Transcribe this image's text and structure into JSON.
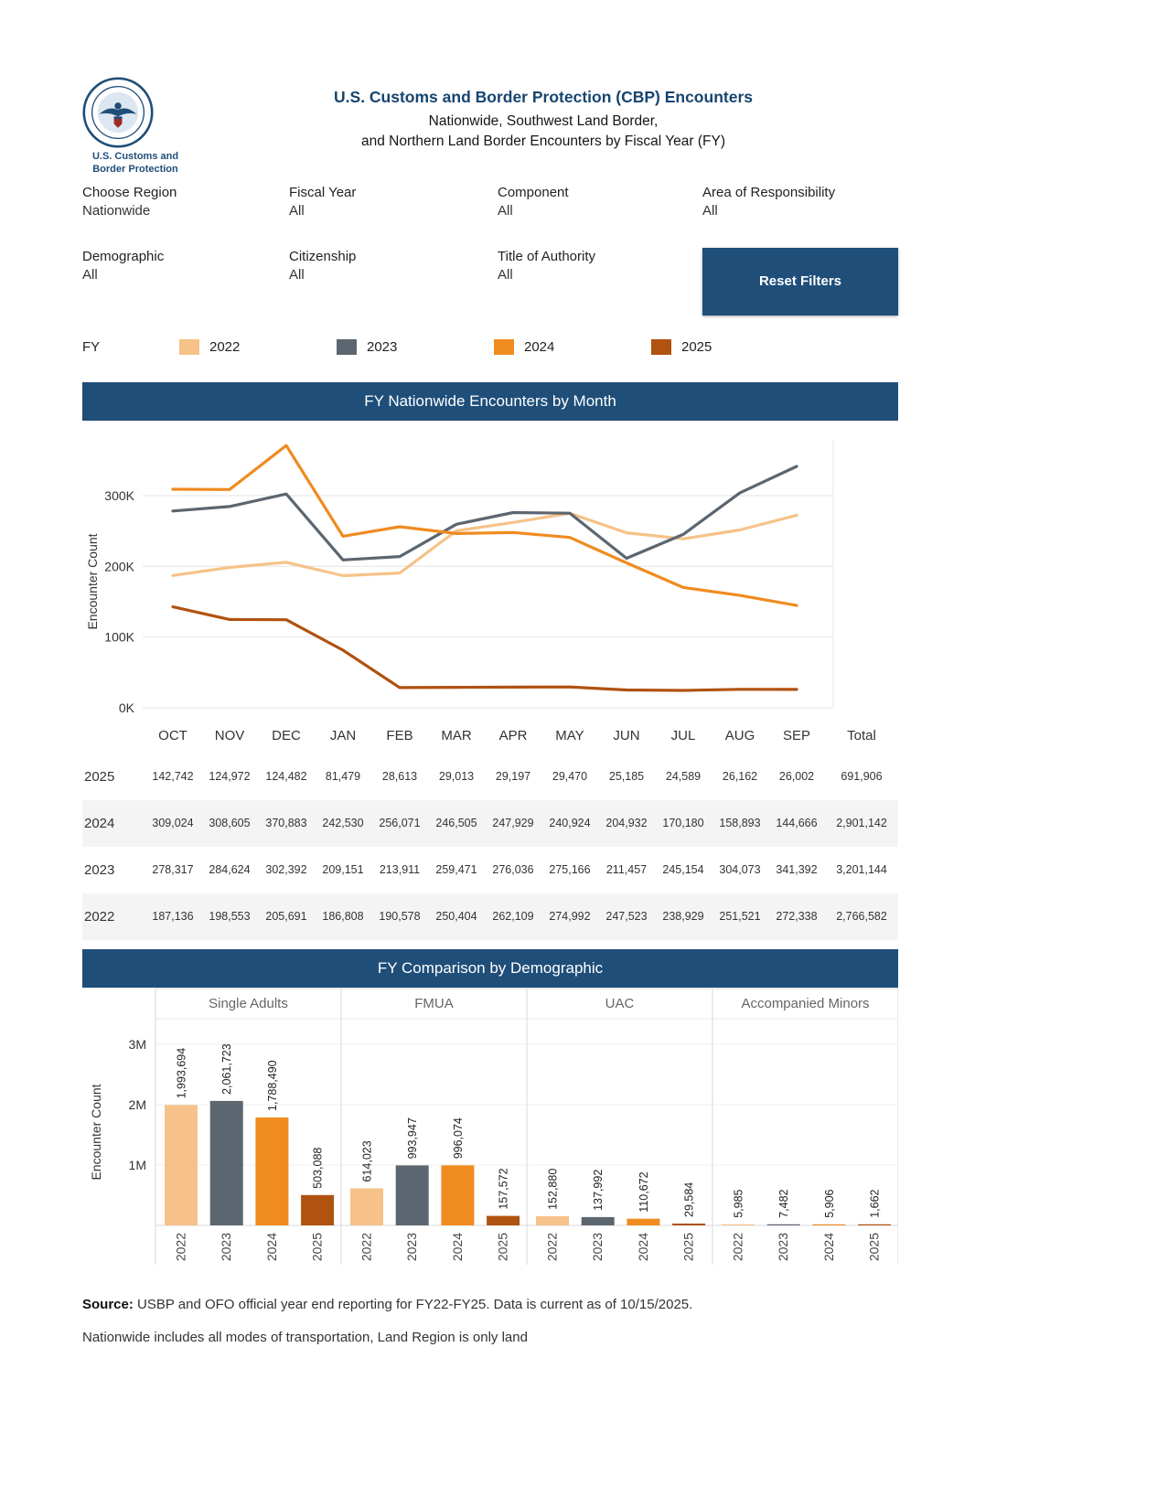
{
  "header": {
    "logo_caption_line1": "U.S. Customs and",
    "logo_caption_line2": "Border Protection",
    "title": "U.S. Customs and Border Protection (CBP) Encounters",
    "subtitle_line1": "Nationwide, Southwest Land Border,",
    "subtitle_line2": "and Northern Land Border Encounters by Fiscal Year (FY)"
  },
  "filters": [
    {
      "label": "Choose Region",
      "value": "Nationwide"
    },
    {
      "label": "Fiscal Year",
      "value": "All"
    },
    {
      "label": "Component",
      "value": "All"
    },
    {
      "label": "Area of Responsibility",
      "value": "All"
    },
    {
      "label": "Demographic",
      "value": "All"
    },
    {
      "label": "Citizenship",
      "value": "All"
    },
    {
      "label": "Title of Authority",
      "value": "All"
    }
  ],
  "reset_button_label": "Reset Filters",
  "legend": {
    "label": "FY",
    "items": [
      {
        "year": "2022",
        "color": "#F6C289"
      },
      {
        "year": "2023",
        "color": "#5C6670"
      },
      {
        "year": "2024",
        "color": "#F08B1F"
      },
      {
        "year": "2025",
        "color": "#B05210"
      }
    ]
  },
  "chart_data": [
    {
      "type": "line",
      "title": "FY Nationwide Encounters by Month",
      "xlabel": "",
      "ylabel": "Encounter Count",
      "x": [
        "OCT",
        "NOV",
        "DEC",
        "JAN",
        "FEB",
        "MAR",
        "APR",
        "MAY",
        "JUN",
        "JUL",
        "AUG",
        "SEP"
      ],
      "yticks": [
        "0K",
        "100K",
        "200K",
        "300K"
      ],
      "ylim": [
        0,
        380000
      ],
      "grid": true,
      "legend_position": "top",
      "series": [
        {
          "name": "2022",
          "color": "#F6C289",
          "values": [
            187136,
            198553,
            205691,
            186808,
            190578,
            250404,
            262109,
            274992,
            247523,
            238929,
            251521,
            272338
          ]
        },
        {
          "name": "2023",
          "color": "#5C6670",
          "values": [
            278317,
            284624,
            302392,
            209151,
            213911,
            259471,
            276036,
            275166,
            211457,
            245154,
            304073,
            341392
          ]
        },
        {
          "name": "2024",
          "color": "#F08B1F",
          "values": [
            309024,
            308605,
            370883,
            242530,
            256071,
            246505,
            247929,
            240924,
            204932,
            170180,
            158893,
            144666
          ]
        },
        {
          "name": "2025",
          "color": "#B05210",
          "values": [
            142742,
            124972,
            124482,
            81479,
            28613,
            29013,
            29197,
            29470,
            25185,
            24589,
            26162,
            26002
          ]
        }
      ]
    },
    {
      "type": "bar",
      "title": "FY Comparison by Demographic",
      "xlabel": "",
      "ylabel": "Encounter Count",
      "yticks": [
        "1M",
        "2M",
        "3M"
      ],
      "ylim": [
        0,
        3300000
      ],
      "groups": [
        "Single Adults",
        "FMUA",
        "UAC",
        "Accompanied Minors"
      ],
      "years": [
        "2022",
        "2023",
        "2024",
        "2025"
      ],
      "series": [
        {
          "group": "Single Adults",
          "values": [
            1993694,
            2061723,
            1788490,
            503088
          ],
          "labels": [
            "1,993,694",
            "2,061,723",
            "1,788,490",
            "503,088"
          ]
        },
        {
          "group": "FMUA",
          "values": [
            614023,
            993947,
            996074,
            157572
          ],
          "labels": [
            "614,023",
            "993,947",
            "996,074",
            "157,572"
          ]
        },
        {
          "group": "UAC",
          "values": [
            152880,
            137992,
            110672,
            29584
          ],
          "labels": [
            "152,880",
            "137,992",
            "110,672",
            "29,584"
          ]
        },
        {
          "group": "Accompanied Minors",
          "values": [
            5985,
            7482,
            5906,
            1662
          ],
          "labels": [
            "5,985",
            "7,482",
            "5,906",
            "1,662"
          ]
        }
      ]
    }
  ],
  "table": {
    "columns": [
      "OCT",
      "NOV",
      "DEC",
      "JAN",
      "FEB",
      "MAR",
      "APR",
      "MAY",
      "JUN",
      "JUL",
      "AUG",
      "SEP",
      "Total"
    ],
    "rows": [
      {
        "year": "2025",
        "values": [
          "142,742",
          "124,972",
          "124,482",
          "81,479",
          "28,613",
          "29,013",
          "29,197",
          "29,470",
          "25,185",
          "24,589",
          "26,162",
          "26,002"
        ],
        "total": "691,906"
      },
      {
        "year": "2024",
        "values": [
          "309,024",
          "308,605",
          "370,883",
          "242,530",
          "256,071",
          "246,505",
          "247,929",
          "240,924",
          "204,932",
          "170,180",
          "158,893",
          "144,666"
        ],
        "total": "2,901,142"
      },
      {
        "year": "2023",
        "values": [
          "278,317",
          "284,624",
          "302,392",
          "209,151",
          "213,911",
          "259,471",
          "276,036",
          "275,166",
          "211,457",
          "245,154",
          "304,073",
          "341,392"
        ],
        "total": "3,201,144"
      },
      {
        "year": "2022",
        "values": [
          "187,136",
          "198,553",
          "205,691",
          "186,808",
          "190,578",
          "250,404",
          "262,109",
          "274,992",
          "247,523",
          "238,929",
          "251,521",
          "272,338"
        ],
        "total": "2,766,582"
      }
    ]
  },
  "footer": {
    "source_label": "Source:",
    "source_text": "USBP and OFO official year end reporting for FY22-FY25. Data is current as of 10/15/2025.",
    "note": "Nationwide includes all modes of transportation, Land Region is only land"
  }
}
